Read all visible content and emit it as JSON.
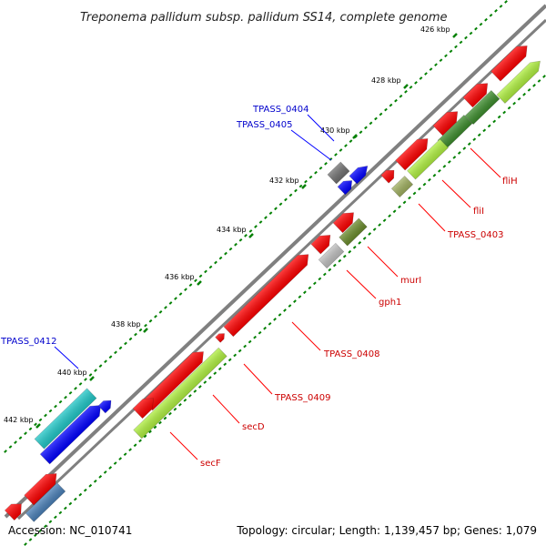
{
  "header": {
    "title": "Treponema pallidum subsp. pallidum SS14, complete genome"
  },
  "footer": {
    "accession": "Accession: NC_010741",
    "topology": "Topology: circular; Length: 1,139,457 bp; Genes: 1,079"
  },
  "colors": {
    "red": "#ff0000",
    "blue": "#0000ff",
    "cyan": "#20c8c8",
    "green": "#3c8c2c",
    "lime": "#b0f040",
    "olive": "#6b8c2c",
    "gray": "#707070",
    "lightgray": "#c0c0c0",
    "steelblue": "#4a80b8",
    "tick": "#008000",
    "label_red": "#cc0000",
    "label_blue": "#0000cc"
  },
  "scale_ticks": [
    "426 kbp",
    "428 kbp",
    "430 kbp",
    "432 kbp",
    "434 kbp",
    "436 kbp",
    "438 kbp",
    "440 kbp",
    "442 kbp"
  ],
  "gene_labels": [
    {
      "text": "fliH",
      "color": "red"
    },
    {
      "text": "fliI",
      "color": "red"
    },
    {
      "text": "TPASS_0403",
      "color": "red"
    },
    {
      "text": "murI",
      "color": "red"
    },
    {
      "text": "gph1",
      "color": "red"
    },
    {
      "text": "TPASS_0408",
      "color": "red"
    },
    {
      "text": "TPASS_0409",
      "color": "red"
    },
    {
      "text": "secD",
      "color": "red"
    },
    {
      "text": "secF",
      "color": "red"
    },
    {
      "text": "TPASS_0404",
      "color": "blue"
    },
    {
      "text": "TPASS_0405",
      "color": "blue"
    },
    {
      "text": "TPASS_0412",
      "color": "blue"
    }
  ]
}
